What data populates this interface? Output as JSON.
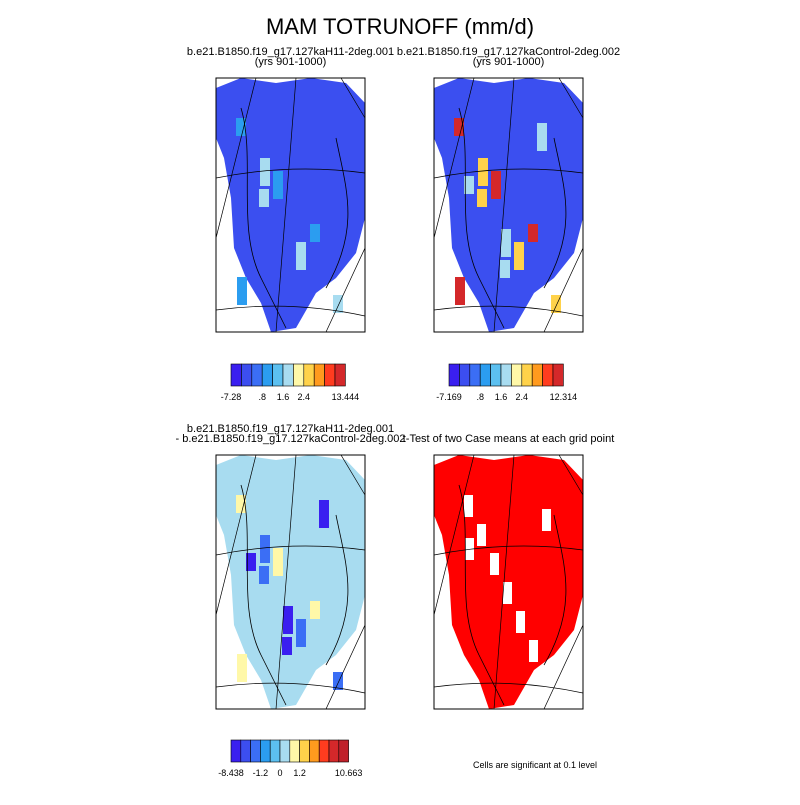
{
  "title": "MAM TOTRUNOFF (mm/d)",
  "panels": [
    {
      "title_lines": [
        "b.e21.B1850.f19_g17.127kaH11-2deg.001",
        "(yrs 901-1000)"
      ],
      "fill": "#3b4ff0",
      "accent": [
        "#2b9df0",
        "#a8dcf0"
      ]
    },
    {
      "title_lines": [
        "b.e21.B1850.f19_g17.127kaControl-2deg.002",
        "(yrs 901-1000)"
      ],
      "fill": "#3b4ff0",
      "accent": [
        "#d4282a",
        "#ffd24a",
        "#a8dcf0"
      ]
    },
    {
      "title_lines": [
        "b.e21.B1850.f19_g17.127kaH11-2deg.001",
        "- b.e21.B1850.f19_g17.127kaControl-2deg.002"
      ],
      "fill": "#a8dcf0",
      "accent": [
        "#fff8a8",
        "#3b6ef5",
        "#3a1ff0"
      ]
    },
    {
      "title_lines": [
        "t-Test of two Case means at each grid point"
      ],
      "fill": "#ff0000",
      "accent": []
    }
  ],
  "colorbars": [
    {
      "colors": [
        "#3a1ff0",
        "#3c4ef0",
        "#3b6ef5",
        "#2b9df0",
        "#5cc0f0",
        "#a8dcf0",
        "#fff8a8",
        "#ffd24a",
        "#ff9a1e",
        "#ff3c1f",
        "#d4282a"
      ],
      "labels": [
        "-7.28",
        ".8",
        "1.6",
        "2.4",
        "13.444"
      ]
    },
    {
      "colors": [
        "#3a1ff0",
        "#3c4ef0",
        "#3b6ef5",
        "#2b9df0",
        "#5cc0f0",
        "#a8dcf0",
        "#fff8a8",
        "#ffd24a",
        "#ff9a1e",
        "#ff3c1f",
        "#d4282a"
      ],
      "labels": [
        "-7.169",
        ".8",
        "1.6",
        "2.4",
        "12.314"
      ]
    },
    {
      "colors": [
        "#3a1ff0",
        "#3c4ef0",
        "#3b6ef5",
        "#2b9df0",
        "#5cc0f0",
        "#a8dcf0",
        "#fff8a8",
        "#ffd24a",
        "#ff9a1e",
        "#ff3c1f",
        "#d4282a",
        "#c0202a"
      ],
      "labels": [
        "-8.438",
        "-1.2",
        "0",
        "1.2",
        "10.663"
      ]
    }
  ],
  "note": "Cells are significant at 0.1 level"
}
